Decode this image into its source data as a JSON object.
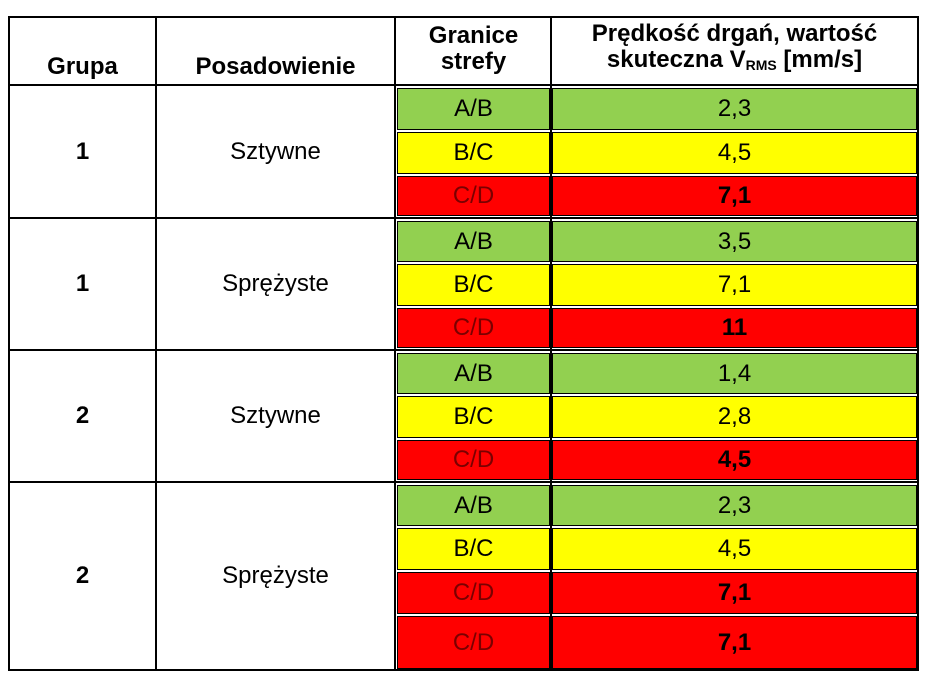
{
  "header": {
    "grupa": "Grupa",
    "posadowienie": "Posadowienie",
    "granice_line1": "Granice",
    "granice_line2": "strefy",
    "predkosc_line1": "Prędkość drgań, wartość",
    "predkosc_line2_pre": "skuteczna V",
    "predkosc_sub": "RMS",
    "predkosc_line2_post": " [mm/s]"
  },
  "colors": {
    "green": "#92d050",
    "yellow": "#ffff00",
    "red": "#ff0000"
  },
  "groups": [
    {
      "grupa": "1",
      "posadowienie": "Sztywne",
      "rows": [
        {
          "zone": "A/B",
          "value": "2,3"
        },
        {
          "zone": "B/C",
          "value": "4,5"
        },
        {
          "zone": "C/D",
          "value": "7,1"
        }
      ]
    },
    {
      "grupa": "1",
      "posadowienie": "Sprężyste",
      "rows": [
        {
          "zone": "A/B",
          "value": "3,5"
        },
        {
          "zone": "B/C",
          "value": "7,1"
        },
        {
          "zone": "C/D",
          "value": "11"
        }
      ]
    },
    {
      "grupa": "2",
      "posadowienie": "Sztywne",
      "rows": [
        {
          "zone": "A/B",
          "value": "1,4"
        },
        {
          "zone": "B/C",
          "value": "2,8"
        },
        {
          "zone": "C/D",
          "value": "4,5"
        }
      ]
    },
    {
      "grupa": "2",
      "posadowienie": "Sprężyste",
      "rows": [
        {
          "zone": "A/B",
          "value": "2,3"
        },
        {
          "zone": "B/C",
          "value": "4,5"
        },
        {
          "zone": "C/D",
          "value": "7,1"
        },
        {
          "zone": "C/D",
          "value": "7,1"
        }
      ]
    }
  ]
}
